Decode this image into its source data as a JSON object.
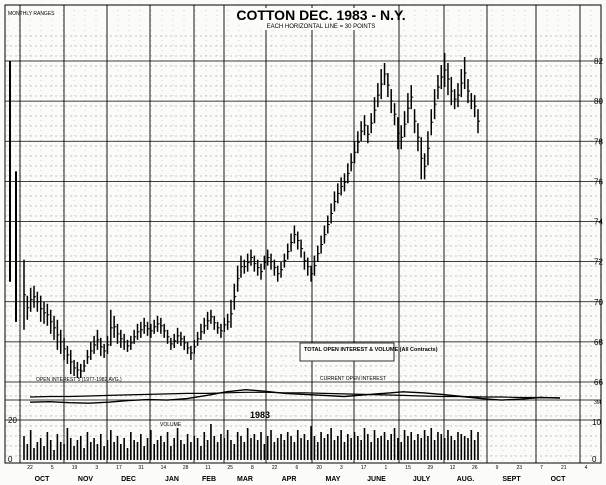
{
  "chart_data": {
    "type": "bar",
    "title": "COTTON DEC. 1983 - N.Y.",
    "subtitle": "EACH HORIZONTAL LINE = 30 POINTS",
    "corner_label": "MONTHLY RANGES",
    "right_axis_labels": [
      "82",
      "80",
      "78",
      "76",
      "74",
      "72",
      "70",
      "68",
      "66"
    ],
    "ylim": [
      66,
      82
    ],
    "left_volume_labels": [
      "20",
      "0"
    ],
    "right_volume_labels": [
      "10",
      "0"
    ],
    "oi_right_label": "3M",
    "months": [
      "OCT",
      "NOV",
      "DEC",
      "JAN",
      "FEB",
      "MAR",
      "APR",
      "MAY",
      "JUNE",
      "JULY",
      "AUG.",
      "SEPT",
      "OCT"
    ],
    "week_days": [
      "22",
      "5",
      "19",
      "3",
      "17",
      "31",
      "14",
      "28",
      "11",
      "25",
      "8",
      "22",
      "6",
      "20",
      "3",
      "17",
      "1",
      "15",
      "29",
      "12",
      "26",
      "9",
      "23",
      "7",
      "21",
      "4"
    ],
    "open_interest_label": "OPEN INTEREST 5 (1977-1982 AVG.)",
    "current_oi_label": "CURRENT OPEN INTEREST",
    "total_oi_label": "TOTAL OPEN INTEREST & VOLUME (All Contracts)",
    "volume_label": "VOLUME",
    "year_label": "1983",
    "series": [
      {
        "name": "DAILY RANGES",
        "values": [
          [
            72.1,
            68.6
          ],
          [
            70.3,
            69.1
          ],
          [
            70.7,
            69.5
          ],
          [
            70.8,
            69.7
          ],
          [
            70.5,
            69.5
          ],
          [
            70.3,
            69.0
          ],
          [
            70.0,
            68.9
          ],
          [
            69.9,
            68.8
          ],
          [
            69.6,
            68.4
          ],
          [
            69.3,
            68.1
          ],
          [
            69.1,
            67.6
          ],
          [
            68.6,
            67.4
          ],
          [
            68.2,
            67.1
          ],
          [
            67.8,
            66.9
          ],
          [
            67.6,
            66.4
          ],
          [
            67.1,
            66.3
          ],
          [
            67.0,
            66.2
          ],
          [
            66.9,
            66.2
          ],
          [
            67.1,
            66.5
          ],
          [
            67.6,
            66.9
          ],
          [
            68.0,
            67.1
          ],
          [
            68.3,
            67.4
          ],
          [
            68.6,
            67.6
          ],
          [
            68.2,
            67.3
          ],
          [
            67.9,
            67.2
          ],
          [
            68.3,
            67.4
          ],
          [
            69.6,
            67.8
          ],
          [
            69.3,
            68.2
          ],
          [
            68.9,
            67.9
          ],
          [
            68.6,
            67.7
          ],
          [
            68.4,
            67.6
          ],
          [
            68.1,
            67.5
          ],
          [
            68.3,
            67.6
          ],
          [
            68.6,
            67.9
          ],
          [
            68.9,
            68.1
          ],
          [
            69.0,
            68.2
          ],
          [
            69.2,
            68.4
          ],
          [
            69.0,
            68.3
          ],
          [
            68.9,
            68.2
          ],
          [
            69.1,
            68.4
          ],
          [
            69.3,
            68.5
          ],
          [
            69.2,
            68.4
          ],
          [
            68.9,
            68.2
          ],
          [
            68.6,
            67.9
          ],
          [
            68.2,
            67.6
          ],
          [
            68.4,
            67.7
          ],
          [
            68.7,
            67.9
          ],
          [
            68.5,
            67.8
          ],
          [
            68.3,
            67.6
          ],
          [
            68.0,
            67.4
          ],
          [
            67.8,
            67.1
          ],
          [
            68.1,
            67.4
          ],
          [
            68.5,
            67.8
          ],
          [
            68.9,
            68.1
          ],
          [
            69.2,
            68.4
          ],
          [
            69.5,
            68.6
          ],
          [
            69.6,
            68.9
          ],
          [
            69.3,
            68.6
          ],
          [
            69.0,
            68.4
          ],
          [
            68.9,
            68.2
          ],
          [
            69.2,
            68.5
          ],
          [
            69.4,
            68.6
          ],
          [
            70.1,
            68.7
          ],
          [
            70.9,
            69.6
          ],
          [
            71.8,
            70.5
          ],
          [
            72.3,
            71.2
          ],
          [
            72.1,
            71.4
          ],
          [
            72.4,
            71.5
          ],
          [
            72.6,
            71.8
          ],
          [
            72.3,
            71.5
          ],
          [
            72.1,
            71.3
          ],
          [
            71.9,
            71.1
          ],
          [
            72.3,
            71.6
          ],
          [
            72.6,
            71.8
          ],
          [
            72.4,
            71.6
          ],
          [
            72.1,
            71.3
          ],
          [
            71.8,
            71.0
          ],
          [
            72.0,
            71.2
          ],
          [
            72.4,
            71.7
          ],
          [
            72.9,
            72.1
          ],
          [
            73.4,
            72.5
          ],
          [
            73.8,
            72.9
          ],
          [
            73.5,
            72.6
          ],
          [
            73.1,
            72.2
          ],
          [
            72.5,
            71.6
          ],
          [
            72.2,
            71.3
          ],
          [
            71.8,
            71.0
          ],
          [
            72.3,
            71.3
          ],
          [
            72.8,
            72.0
          ],
          [
            73.3,
            72.4
          ],
          [
            73.8,
            72.9
          ],
          [
            74.3,
            73.4
          ],
          [
            74.9,
            73.9
          ],
          [
            75.5,
            74.5
          ],
          [
            75.9,
            74.9
          ],
          [
            76.2,
            75.3
          ],
          [
            76.4,
            75.5
          ],
          [
            76.9,
            75.9
          ],
          [
            77.4,
            76.5
          ],
          [
            78.0,
            76.9
          ],
          [
            78.5,
            77.4
          ],
          [
            79.0,
            78.0
          ],
          [
            79.3,
            78.3
          ],
          [
            78.8,
            77.9
          ],
          [
            79.4,
            78.4
          ],
          [
            80.2,
            78.9
          ],
          [
            80.9,
            79.7
          ],
          [
            81.6,
            80.1
          ],
          [
            81.9,
            80.8
          ],
          [
            81.4,
            80.2
          ],
          [
            80.6,
            79.4
          ],
          [
            79.9,
            78.8
          ],
          [
            79.2,
            77.6
          ],
          [
            78.8,
            77.6
          ],
          [
            79.5,
            78.2
          ],
          [
            80.4,
            78.9
          ],
          [
            80.8,
            79.6
          ],
          [
            79.6,
            78.4
          ],
          [
            78.9,
            77.5
          ],
          [
            78.2,
            76.1
          ],
          [
            77.4,
            76.1
          ],
          [
            78.5,
            76.8
          ],
          [
            79.6,
            78.3
          ],
          [
            80.6,
            79.1
          ],
          [
            81.3,
            80.1
          ],
          [
            81.8,
            80.6
          ],
          [
            82.4,
            80.7
          ],
          [
            81.9,
            80.3
          ],
          [
            81.2,
            79.8
          ],
          [
            80.6,
            79.6
          ],
          [
            80.9,
            79.7
          ],
          [
            81.6,
            80.2
          ],
          [
            82.2,
            80.6
          ],
          [
            81.1,
            79.9
          ],
          [
            80.4,
            79.6
          ],
          [
            80.3,
            79.2
          ],
          [
            79.6,
            78.4
          ]
        ]
      },
      {
        "name": "VOLUME",
        "values": [
          12,
          8,
          15,
          6,
          9,
          11,
          7,
          14,
          10,
          5,
          13,
          9,
          8,
          16,
          11,
          7,
          10,
          12,
          6,
          14,
          9,
          11,
          8,
          13,
          7,
          10,
          15,
          9,
          12,
          8,
          11,
          6,
          14,
          10,
          9,
          13,
          7,
          11,
          15,
          8,
          10,
          12,
          9,
          14,
          7,
          11,
          16,
          10,
          8,
          13,
          9,
          12,
          11,
          7,
          14,
          10,
          18,
          12,
          9,
          13,
          11,
          15,
          10,
          8,
          14,
          12,
          9,
          16,
          11,
          13,
          10,
          14,
          8,
          12,
          15,
          9,
          11,
          13,
          10,
          14,
          12,
          9,
          15,
          11,
          13,
          10,
          17,
          12,
          9,
          14,
          11,
          13,
          16,
          10,
          12,
          15,
          9,
          13,
          11,
          14,
          12,
          10,
          16,
          13,
          9,
          15,
          11,
          12,
          14,
          10,
          13,
          16,
          11,
          9,
          15,
          12,
          14,
          10,
          13,
          11,
          15,
          12,
          16,
          10,
          14,
          13,
          11,
          15,
          12,
          10,
          14,
          13,
          12,
          11,
          15,
          10,
          14
        ]
      },
      {
        "name": "OPEN INTEREST (1977-1982 AVG.)",
        "values": [
          6.5,
          6.6,
          6.6,
          6.7,
          6.8,
          6.9,
          7.0,
          7.1,
          7.2,
          7.2,
          7.3,
          7.4,
          7.4,
          7.3,
          7.3,
          7.2,
          7.1,
          7.0,
          6.9,
          6.8,
          6.7,
          6.6,
          6.6,
          6.5,
          6.5,
          6.4,
          6.4,
          6.3
        ]
      },
      {
        "name": "CURRENT OPEN INTEREST",
        "values": [
          5.5,
          5.6,
          5.4,
          5.3,
          5.5,
          5.8,
          6.0,
          5.9,
          6.2,
          6.8,
          7.5,
          7.9,
          7.6,
          7.2,
          7.0,
          6.8,
          6.6,
          6.9,
          7.2,
          7.5,
          7.3,
          7.0,
          6.6,
          6.2,
          5.9,
          6.1,
          6.4,
          6.3
        ]
      }
    ]
  }
}
